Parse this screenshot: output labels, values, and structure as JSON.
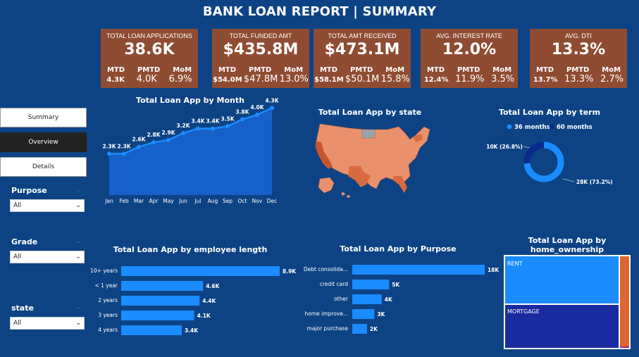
{
  "title": "BANK LOAN REPORT | SUMMARY",
  "kpis": [
    {
      "label": "TOTAL LOAN APPLICATIONS",
      "value": "38.6K",
      "mtd_label": "MTD",
      "pmtd_label": "PMTD",
      "mom_label": "MoM",
      "mtd": "4.3K",
      "pmtd": "4.0K",
      "mom": "6.9%"
    },
    {
      "label": "TOTAL FUNDED AMT",
      "value": "$435.8M",
      "mtd_label": "MTD",
      "pmtd_label": "PMTD",
      "mom_label": "MoM",
      "mtd": "$54.0M",
      "pmtd": "$47.8M",
      "mom": "13.0%"
    },
    {
      "label": "TOTAL AMT RECEIVED",
      "value": "$473.1M",
      "mtd_label": "MTD",
      "pmtd_label": "PMTD",
      "mom_label": "MoM",
      "mtd": "$58.1M",
      "pmtd": "$50.1M",
      "mom": "15.8%"
    },
    {
      "label": "AVG. INTEREST RATE",
      "value": "12.0%",
      "mtd_label": "MTD",
      "pmtd_label": "PMTD",
      "mom_label": "MoM",
      "mtd": "12.4%",
      "pmtd": "11.9%",
      "mom": "3.5%"
    },
    {
      "label": "AVG. DTI",
      "value": "13.3%",
      "mtd_label": "MTD",
      "pmtd_label": "PMTD",
      "mom_label": "MoM",
      "mtd": "13.7%",
      "pmtd": "13.3%",
      "mom": "2.7%"
    }
  ],
  "nav": {
    "summary": "Summary",
    "overview": "Overview",
    "details": "Details"
  },
  "filters": {
    "purpose": {
      "label": "Purpose",
      "value": "All"
    },
    "grade": {
      "label": "Grade",
      "value": "All"
    },
    "state": {
      "label": "state",
      "value": "All"
    }
  },
  "colors": {
    "bg": "#0d4384",
    "kpi": "#8f4c32",
    "bar": "#1a8cff",
    "map": "#e8916c"
  },
  "titles": {
    "month": "Total Loan App by Month",
    "state": "Total Loan App by state",
    "term": "Total Loan App by term",
    "emp": "Total Loan App by employee length",
    "purpose": "Total Loan App by Purpose",
    "home_line1": "Total Loan App by",
    "home_line2": "home_ownership"
  },
  "chart_data": [
    {
      "type": "area",
      "title": "Total Loan App by Month",
      "categories": [
        "Jan",
        "Feb",
        "Mar",
        "Apr",
        "May",
        "Jun",
        "Jul",
        "Aug",
        "Sep",
        "Oct",
        "Nov",
        "Dec"
      ],
      "values": [
        2.3,
        2.3,
        2.6,
        2.8,
        2.9,
        3.2,
        3.4,
        3.4,
        3.5,
        3.8,
        4.0,
        4.3
      ],
      "labels": [
        "2.3K",
        "2.3K",
        "2.6K",
        "2.8K",
        "2.9K",
        "3.2K",
        "3.4K",
        "3.4K",
        "3.5K",
        "3.8K",
        "4.0K",
        "4.3K"
      ]
    },
    {
      "type": "pie",
      "title": "Total Loan App by term",
      "legend": [
        "36 months",
        "60 months"
      ],
      "values": [
        28,
        10
      ],
      "labels": [
        "28K (73.2%)",
        "10K (26.8%)"
      ],
      "colors": [
        "#1a8cff",
        "#0a2a8c"
      ]
    },
    {
      "type": "bar",
      "title": "Total Loan App by employee length",
      "categories": [
        "10+ years",
        "< 1 year",
        "2 years",
        "3 years",
        "4 years"
      ],
      "values": [
        8.9,
        4.6,
        4.4,
        4.1,
        3.4
      ],
      "labels": [
        "8.9K",
        "4.6K",
        "4.4K",
        "4.1K",
        "3.4K"
      ]
    },
    {
      "type": "bar",
      "title": "Total Loan App by Purpose",
      "categories": [
        "Debt consolida...",
        "credit card",
        "other",
        "home improve...",
        "major purchase"
      ],
      "values": [
        18,
        5,
        4,
        3,
        2
      ],
      "labels": [
        "18K",
        "5K",
        "4K",
        "3K",
        "2K"
      ]
    },
    {
      "type": "heatmap",
      "title": "Total Loan App by home_ownership",
      "categories": [
        "RENT",
        "MORTGAGE"
      ]
    }
  ]
}
